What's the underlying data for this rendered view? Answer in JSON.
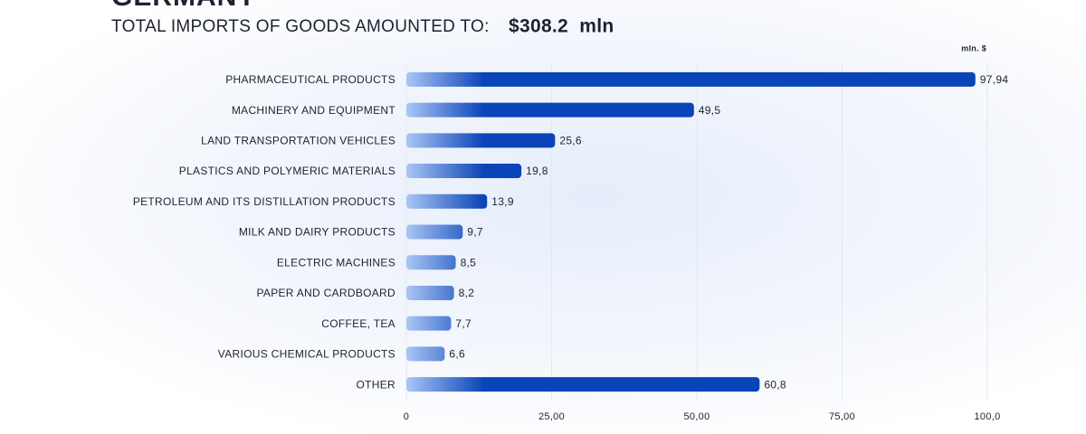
{
  "chart_data": {
    "type": "hbar",
    "title": "GERMANY",
    "subtitle": "TOTAL IMPORTS OF GOODS AMOUNTED TO:",
    "total": "$308.2  mln",
    "unit_label": "mln. $",
    "categories": [
      "PHARMACEUTICAL PRODUCTS",
      "MACHINERY AND EQUIPMENT",
      "LAND TRANSPORTATION VEHICLES",
      "PLASTICS AND POLYMERIC MATERIALS",
      "PETROLEUM AND ITS DISTILLATION PRODUCTS",
      "MILK AND DAIRY PRODUCTS",
      "ELECTRIC MACHINES",
      "PAPER AND CARDBOARD",
      "COFFEE, TEA",
      "VARIOUS CHEMICAL PRODUCTS",
      "OTHER"
    ],
    "values": [
      97.94,
      49.5,
      25.6,
      19.8,
      13.9,
      9.7,
      8.5,
      8.2,
      7.7,
      6.6,
      60.8
    ],
    "value_labels": [
      "97,94",
      "49,5",
      "25,6",
      "19,8",
      "13,9",
      "9,7",
      "8,5",
      "8,2",
      "7,7",
      "6,6",
      "60,8"
    ],
    "color": "#0a44b8",
    "xlim": [
      0,
      100
    ],
    "xticks": [
      0,
      {
        "value": 25,
        "label": "25,00"
      },
      {
        "value": 50,
        "label": "50,00"
      },
      {
        "value": 75,
        "label": "75,00"
      },
      {
        "value": 100,
        "label": "100,0"
      }
    ],
    "grid": true
  }
}
